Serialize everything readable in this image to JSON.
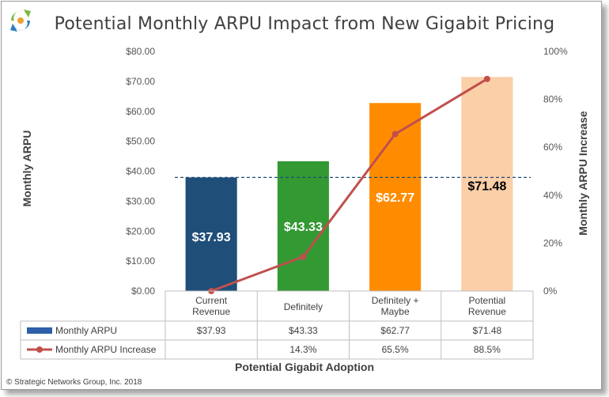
{
  "title": "Potential Monthly ARPU Impact from New Gigabit Pricing",
  "copyright": "© Strategic Networks Group, Inc. 2018",
  "colors": {
    "bar_colors": [
      "#1f4e79",
      "#339933",
      "#ff8c00",
      "#fbcfa8"
    ],
    "line": "#c0504d",
    "legend_bar": "#2e5fa8",
    "dashed_line": "#1f4e79"
  },
  "chart_data": {
    "type": "bar",
    "title": "Potential Monthly ARPU Impact from New Gigabit Pricing",
    "xlabel": "Potential Gigabit Adoption",
    "ylabel": "Monthly ARPU",
    "y2label": "Monthly ARPU Increase",
    "categories": [
      [
        "Current",
        "Revenue"
      ],
      [
        "Definitely"
      ],
      [
        "Definitely +",
        "Maybe"
      ],
      [
        "Potential",
        "Revenue"
      ]
    ],
    "ylim": [
      0,
      80
    ],
    "y2lim": [
      0,
      100
    ],
    "yticks": [
      "$0.00",
      "$10.00",
      "$20.00",
      "$30.00",
      "$40.00",
      "$50.00",
      "$60.00",
      "$70.00",
      "$80.00"
    ],
    "y2ticks": [
      "0%",
      "20%",
      "40%",
      "60%",
      "80%",
      "100%"
    ],
    "reference_line": 37.93,
    "series": [
      {
        "name": "Monthly ARPU",
        "type": "bar",
        "axis": "left",
        "values": [
          37.93,
          43.33,
          62.77,
          71.48
        ],
        "labels": [
          "$37.93",
          "$43.33",
          "$62.77",
          "$71.48"
        ],
        "label_colors": [
          "#ffffff",
          "#ffffff",
          "#ffffff",
          "#000000"
        ]
      },
      {
        "name": "Monthly ARPU Increase",
        "type": "line",
        "axis": "right",
        "values": [
          0,
          14.3,
          65.5,
          88.5
        ],
        "labels": [
          "",
          "14.3%",
          "65.5%",
          "88.5%"
        ]
      }
    ]
  }
}
